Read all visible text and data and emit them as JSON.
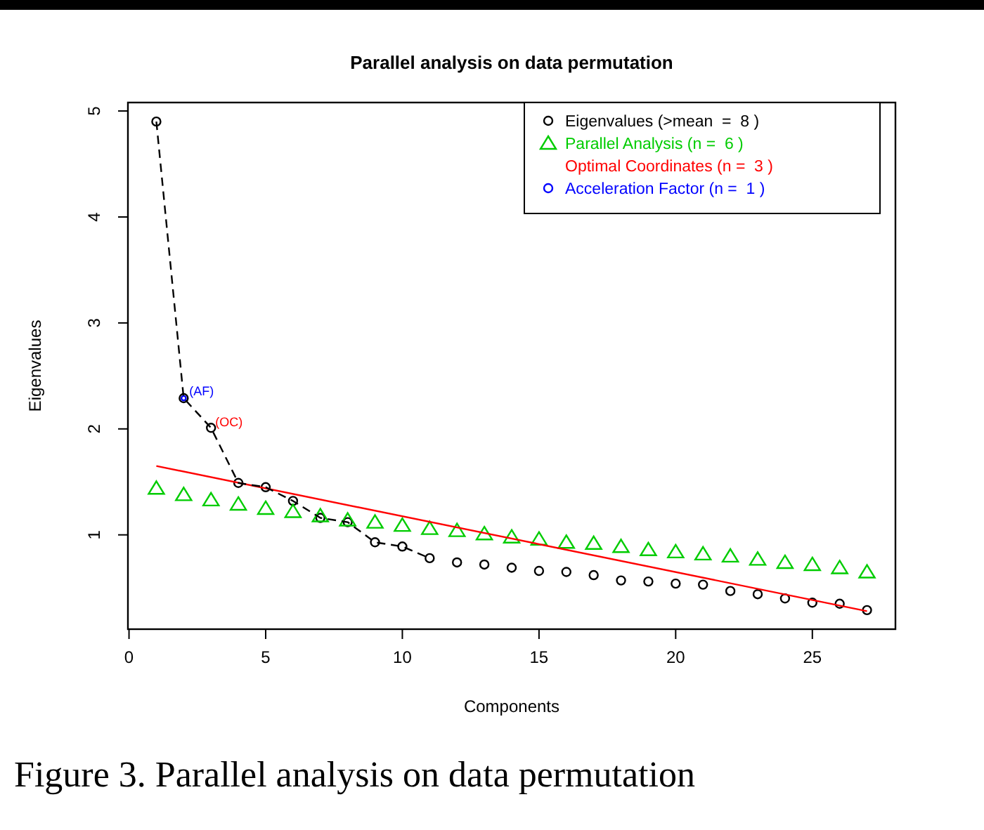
{
  "chart_data": {
    "type": "scatter",
    "title": "Parallel analysis on data permutation",
    "xlabel": "Components",
    "ylabel": "Eigenvalues",
    "x": [
      1,
      2,
      3,
      4,
      5,
      6,
      7,
      8,
      9,
      10,
      11,
      12,
      13,
      14,
      15,
      16,
      17,
      18,
      19,
      20,
      21,
      22,
      23,
      24,
      25,
      26,
      27
    ],
    "xlim": [
      -0.04,
      28.04
    ],
    "ylim": [
      0.11,
      5.08
    ],
    "xticks": [
      0,
      5,
      10,
      15,
      20,
      25
    ],
    "yticks": [
      1,
      2,
      3,
      4,
      5
    ],
    "grid": false,
    "legend": "top right",
    "series": [
      {
        "name": "Eigenvalues (>mean  =  8 )",
        "color": "#000000",
        "marker": "circle",
        "values": [
          4.9,
          2.29,
          2.01,
          1.49,
          1.45,
          1.32,
          1.16,
          1.12,
          0.93,
          0.89,
          0.78,
          0.74,
          0.72,
          0.69,
          0.66,
          0.65,
          0.62,
          0.57,
          0.56,
          0.54,
          0.53,
          0.47,
          0.44,
          0.4,
          0.36,
          0.35,
          0.29
        ]
      },
      {
        "name": "Parallel Analysis (n =  6 )",
        "color": "#00cc00",
        "marker": "triangle",
        "values": [
          1.44,
          1.38,
          1.33,
          1.29,
          1.25,
          1.22,
          1.18,
          1.14,
          1.12,
          1.09,
          1.06,
          1.04,
          1.01,
          0.98,
          0.96,
          0.93,
          0.92,
          0.89,
          0.86,
          0.84,
          0.82,
          0.8,
          0.77,
          0.74,
          0.72,
          0.69,
          0.65
        ]
      },
      {
        "name": "Optimal Coordinates (n =  3 )",
        "type": "line",
        "color": "#ff0000",
        "marker": "none",
        "line_style": "solid",
        "x": [
          1,
          27
        ],
        "values": [
          1.65,
          0.28
        ]
      },
      {
        "name": "Acceleration Factor (n =  1 )",
        "color": "#0000ff",
        "marker": "circle",
        "x": [
          2
        ],
        "values": [
          2.29
        ],
        "value_labels": [
          "(AF)"
        ]
      },
      {
        "type": "line",
        "color": "#000000",
        "marker": "none",
        "line_style": "dashed",
        "x": [
          1,
          2,
          3,
          4,
          5,
          6,
          7,
          8,
          9,
          10,
          11
        ],
        "values": [
          4.9,
          2.29,
          2.01,
          1.49,
          1.45,
          1.32,
          1.16,
          1.12,
          0.93,
          0.89,
          0.78
        ]
      }
    ],
    "annotations": [
      {
        "text": "(OC)",
        "x": 3,
        "y": 2.01
      },
      "Figure 3. Parallel analysis on data permutation"
    ]
  }
}
